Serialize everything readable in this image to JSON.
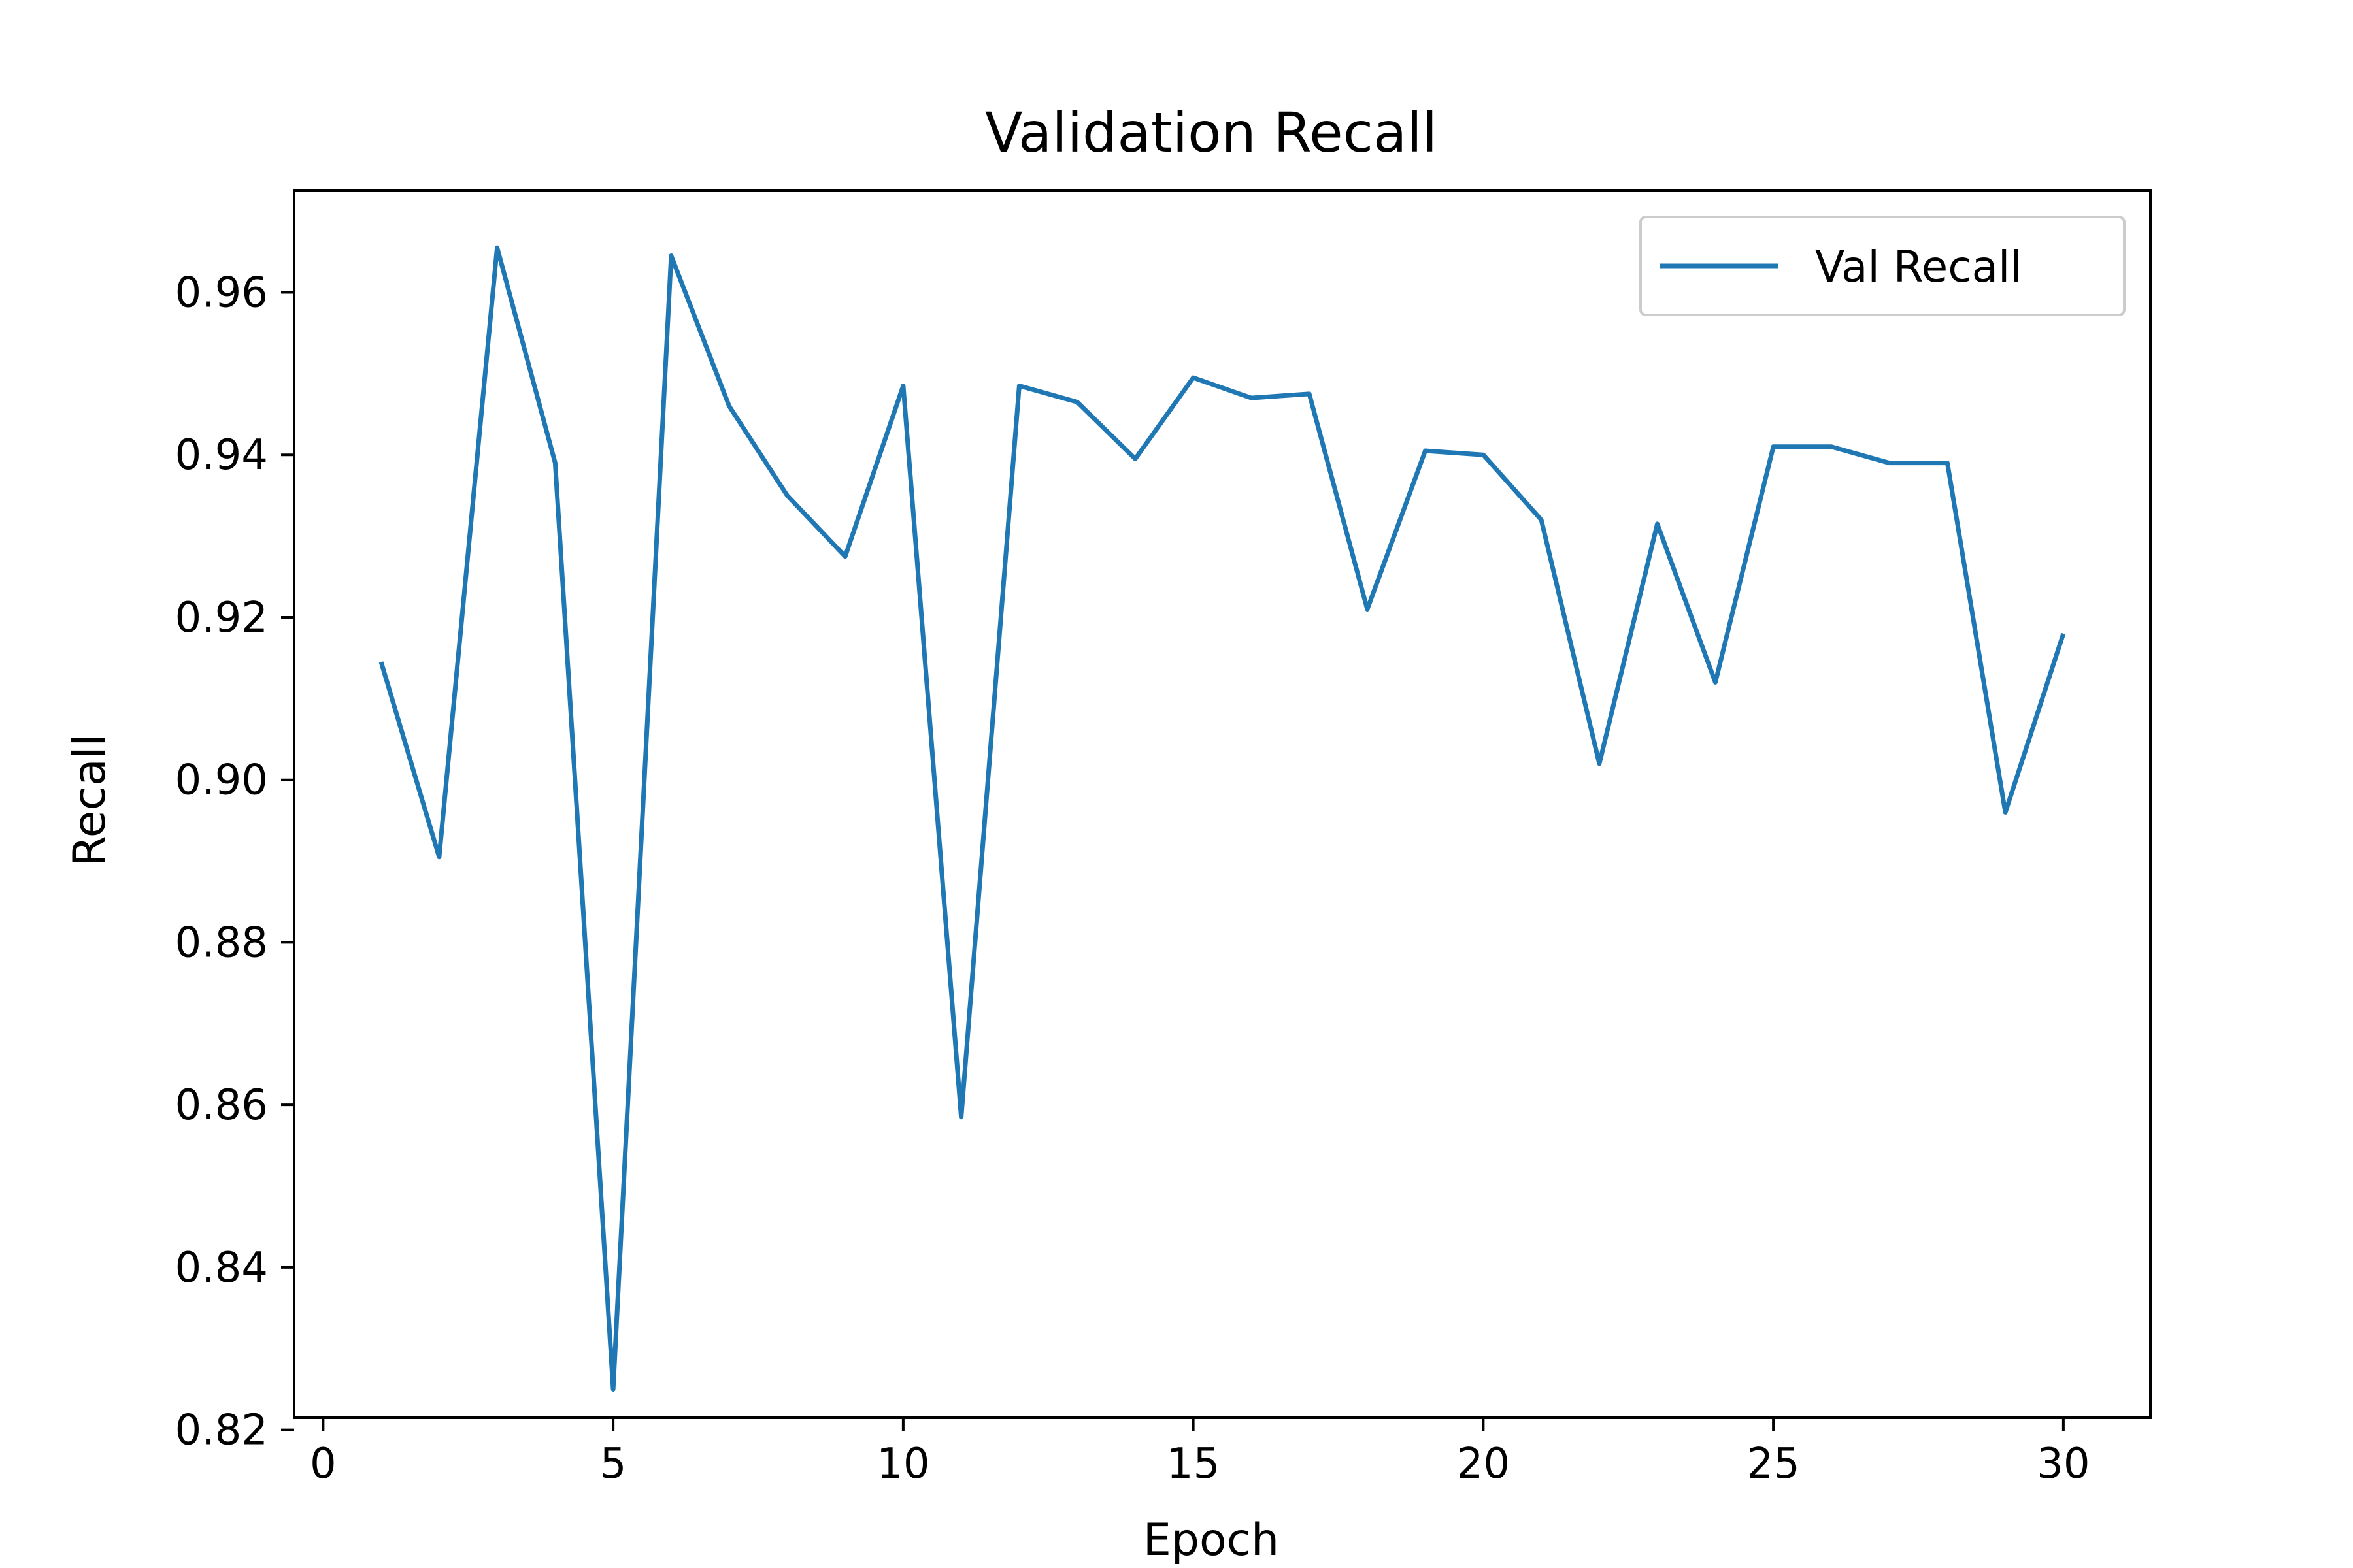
{
  "chart_data": {
    "type": "line",
    "title": "Validation Recall",
    "xlabel": "Epoch",
    "ylabel": "Recall",
    "xlim": [
      -0.5,
      31.5
    ],
    "ylim": [
      0.8215,
      0.9725
    ],
    "xticks": [
      0,
      5,
      10,
      15,
      20,
      25,
      30
    ],
    "xtick_labels": [
      "0",
      "5",
      "10",
      "15",
      "20",
      "25",
      "30"
    ],
    "yticks": [
      0.82,
      0.84,
      0.86,
      0.88,
      0.9,
      0.92,
      0.94,
      0.96
    ],
    "ytick_labels": [
      "0.82",
      "0.84",
      "0.86",
      "0.88",
      "0.90",
      "0.92",
      "0.94",
      "0.96"
    ],
    "grid": false,
    "legend_position": "upper right",
    "series": [
      {
        "name": "Val Recall",
        "color": "#1f77b4",
        "x": [
          1,
          2,
          3,
          4,
          5,
          6,
          7,
          8,
          9,
          10,
          11,
          12,
          13,
          14,
          15,
          16,
          17,
          18,
          19,
          20,
          21,
          22,
          23,
          24,
          25,
          26,
          27,
          28,
          29,
          30
        ],
        "values": [
          0.9145,
          0.8905,
          0.9655,
          0.939,
          0.825,
          0.9645,
          0.946,
          0.935,
          0.9275,
          0.9485,
          0.8585,
          0.9485,
          0.9465,
          0.9395,
          0.9495,
          0.947,
          0.9475,
          0.921,
          0.9405,
          0.94,
          0.932,
          0.902,
          0.9315,
          0.912,
          0.941,
          0.941,
          0.939,
          0.939,
          0.896,
          0.918
        ]
      }
    ]
  }
}
